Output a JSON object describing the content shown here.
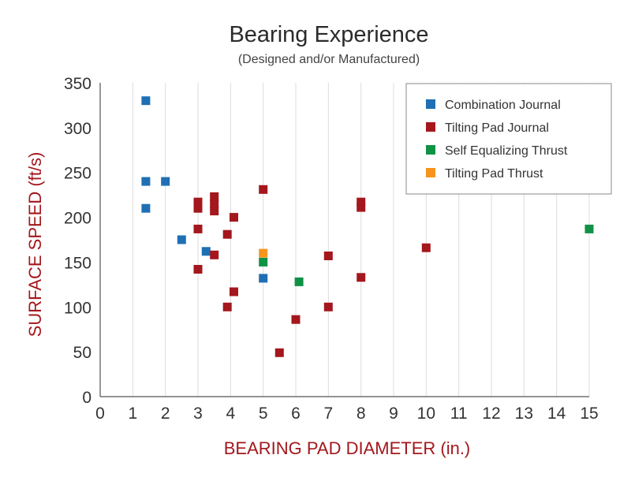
{
  "chart_data": {
    "type": "scatter",
    "title": "Bearing Experience",
    "subtitle": "(Designed and/or Manufactured)",
    "xlabel": "BEARING PAD DIAMETER (in.)",
    "ylabel": "SURFACE SPEED (ft/s)",
    "xlim": [
      0,
      15
    ],
    "ylim": [
      0,
      350
    ],
    "xticks": [
      "0",
      "1",
      "2",
      "3",
      "4",
      "5",
      "6",
      "7",
      "8",
      "9",
      "10",
      "11",
      "12",
      "13",
      "14",
      "15"
    ],
    "yticks": [
      "0",
      "50",
      "100",
      "150",
      "200",
      "250",
      "300",
      "350"
    ],
    "grid": "vertical",
    "legend_position": "top-right",
    "series": [
      {
        "name": "Combination Journal",
        "color": "#1f6fb4",
        "points": [
          [
            1.4,
            330
          ],
          [
            1.4,
            240
          ],
          [
            2.0,
            240
          ],
          [
            1.4,
            210
          ],
          [
            2.5,
            175
          ],
          [
            3.25,
            162
          ],
          [
            5.0,
            132
          ]
        ]
      },
      {
        "name": "Tilting Pad Journal",
        "color": "#a3171d",
        "points": [
          [
            3.0,
            217
          ],
          [
            3.0,
            210
          ],
          [
            3.5,
            223
          ],
          [
            3.5,
            215
          ],
          [
            3.5,
            207
          ],
          [
            4.1,
            200
          ],
          [
            5.0,
            231
          ],
          [
            3.0,
            187
          ],
          [
            3.9,
            181
          ],
          [
            3.5,
            158
          ],
          [
            3.0,
            142
          ],
          [
            4.1,
            117
          ],
          [
            3.9,
            100
          ],
          [
            5.5,
            49
          ],
          [
            6.0,
            86
          ],
          [
            7.0,
            157
          ],
          [
            7.0,
            100
          ],
          [
            8.0,
            217
          ],
          [
            8.0,
            211
          ],
          [
            8.0,
            133
          ],
          [
            10.0,
            166
          ]
        ]
      },
      {
        "name": "Self Equalizing Thrust",
        "color": "#0f9245",
        "points": [
          [
            5.0,
            150
          ],
          [
            6.1,
            128
          ],
          [
            15.0,
            187
          ]
        ]
      },
      {
        "name": "Tilting Pad Thrust",
        "color": "#f7941d",
        "points": [
          [
            5.0,
            160
          ]
        ]
      }
    ]
  }
}
